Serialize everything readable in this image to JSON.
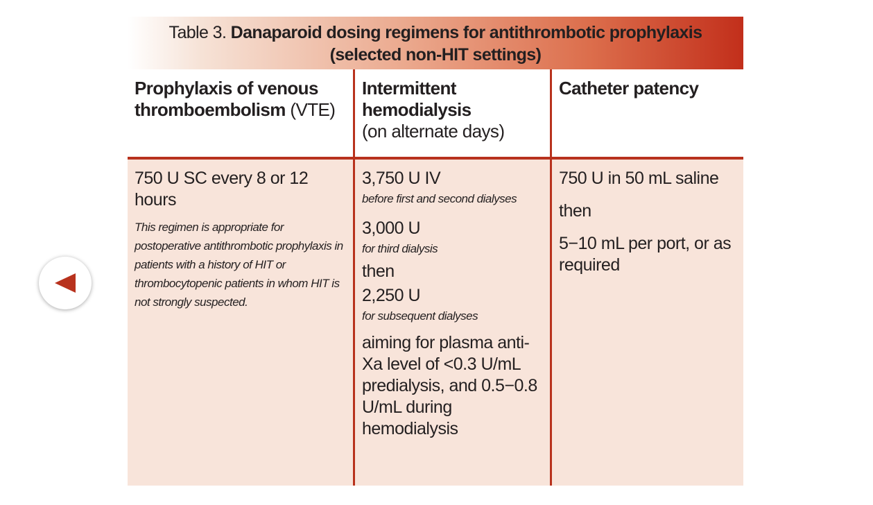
{
  "nav": {
    "back_icon": "left-triangle-arrow-icon",
    "icon_color": "#b8321d"
  },
  "table": {
    "title_prefix": "Table 3.",
    "title_main_line1": "Danaparoid dosing regimens for antithrombotic prophylaxis",
    "title_main_line2": "(selected non-HIT settings)",
    "accent_color": "#b8321d",
    "body_bg": "#f8e4da",
    "columns": [
      {
        "header_bold": "Prophylaxis of venous thromboembolism",
        "header_normal": "(VTE)"
      },
      {
        "header_bold": "Intermittent hemodialysis",
        "header_normal": "(on alternate days)"
      },
      {
        "header_bold": "Catheter patency",
        "header_normal": ""
      }
    ],
    "col1": {
      "dose": "750 U SC every 8 or 12 hours",
      "note": "This regimen is appropriate for postoperative antithrombotic prophylaxis in patients with a history of HIT or thrombocytopenic patients in whom HIT is not strongly suspected."
    },
    "col2": {
      "dose1": "3,750 U IV",
      "dose1_note": "before first and second dialyses",
      "dose2": "3,000 U",
      "dose2_note": "for third dialysis",
      "then": "then",
      "dose3": "2,250 U",
      "dose3_note": "for subsequent dialyses",
      "target": "aiming for plasma anti-Xa level of <0.3 U/mL predialysis, and 0.5−0.8 U/mL during hemodialysis"
    },
    "col3": {
      "dose": "750 U in 50 mL saline",
      "then": "then",
      "maintenance": "5−10 mL per port, or as required"
    }
  }
}
